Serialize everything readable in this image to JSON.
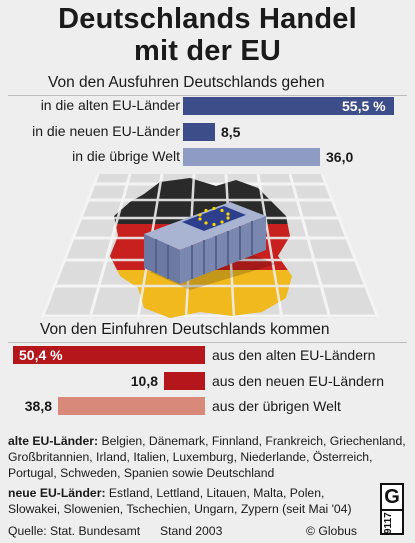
{
  "title": {
    "line1": "Deutschlands Handel",
    "line2": "mit der EU"
  },
  "export_section": {
    "heading": "Von den Ausfuhren Deutschlands gehen",
    "items": [
      {
        "label": "in die alten EU-Länder",
        "value_text": "55,5 %"
      },
      {
        "label": "in die neuen EU-Länder",
        "value_text": "8,5"
      },
      {
        "label": "in die übrige Welt",
        "value_text": "36,0"
      }
    ]
  },
  "import_section": {
    "heading": "Von den Einfuhren Deutschlands kommen",
    "items": [
      {
        "label": "aus den alten EU-Ländern",
        "value_text": "50,4 %"
      },
      {
        "label": "aus den neuen EU-Ländern",
        "value_text": "10,8"
      },
      {
        "label": "aus der übrigen Welt",
        "value_text": "38,8"
      }
    ]
  },
  "notes": {
    "old_heading": "alte EU-Länder:",
    "old_text": " Belgien, Dänemark, Finnland, Frankreich, Griechenland, Großbritannien, Irland, Italien, Luxemburg, Niederlande, Österreich, Portugal, Schweden, Spanien sowie Deutschland",
    "new_heading": "neue EU-Länder:",
    "new_text": " Estland, Lettland, Litauen, Malta, Polen, Slowakei, Slowenien, Tschechien, Ungarn, Zypern (seit Mai '04)"
  },
  "footer": {
    "source": "Quelle: Stat. Bundesamt",
    "date": "Stand 2003",
    "copyright": "© Globus",
    "logo_letter": "G",
    "logo_number": "9117"
  },
  "colors": {
    "export_dark": "#3d4d8a",
    "export_light": "#8e9cc4",
    "import_dark": "#b5161c",
    "import_light": "#d9897a",
    "flag_black": "#2a2a2a",
    "flag_red": "#c8201e",
    "flag_gold": "#f0b91e",
    "container": "#7a88b0",
    "eu_blue": "#2c3e8c",
    "eu_star": "#f5d800"
  },
  "illustration": {
    "description_icon": "germany-map-with-eu-container-icon"
  },
  "chart_data": [
    {
      "type": "bar",
      "orientation": "horizontal",
      "title": "Von den Ausfuhren Deutschlands gehen",
      "unit": "%",
      "categories": [
        "in die alten EU-Länder",
        "in die neuen EU-Länder",
        "in die übrige Welt"
      ],
      "values": [
        55.5,
        8.5,
        36.0
      ]
    },
    {
      "type": "bar",
      "orientation": "horizontal",
      "title": "Von den Einfuhren Deutschlands kommen",
      "unit": "%",
      "categories": [
        "aus den alten EU-Ländern",
        "aus den neuen EU-Ländern",
        "aus der übrigen Welt"
      ],
      "values": [
        50.4,
        10.8,
        38.8
      ]
    }
  ]
}
